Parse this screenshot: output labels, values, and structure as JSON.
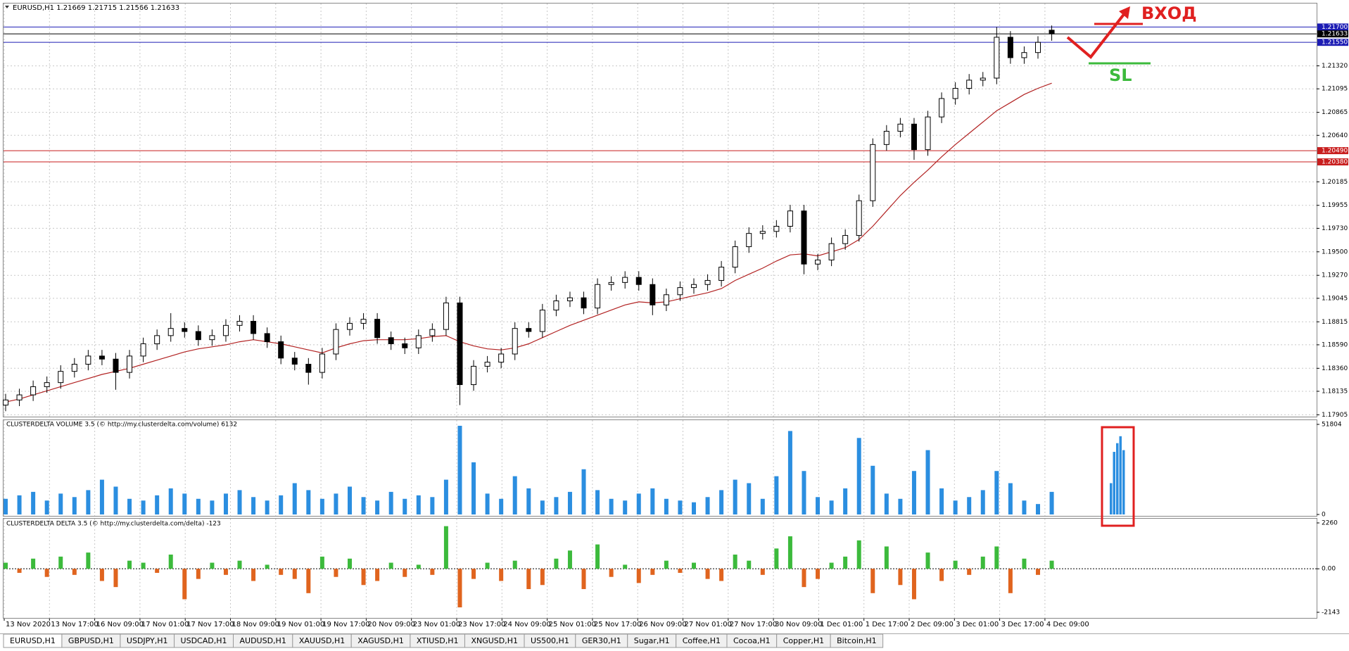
{
  "chart_data": [
    {
      "type": "candlestick",
      "title": "EURUSD,H1  1.21669 1.21715 1.21566 1.21633",
      "open": [
        1.18,
        1.1805,
        1.181,
        1.1818,
        1.1822,
        1.1833,
        1.184,
        1.1848,
        1.1845,
        1.1832,
        1.1848,
        1.186,
        1.1868,
        1.1875,
        1.1872,
        1.1864,
        1.1868,
        1.1878,
        1.1882,
        1.187,
        1.1862,
        1.1846,
        1.184,
        1.1832,
        1.185,
        1.1874,
        1.188,
        1.1884,
        1.1866,
        1.186,
        1.1856,
        1.1868,
        1.1874,
        1.19,
        1.182,
        1.1838,
        1.1842,
        1.185,
        1.1875,
        1.1872,
        1.1893,
        1.1902,
        1.1905,
        1.1895,
        1.1918,
        1.192,
        1.1925,
        1.1918,
        1.1898,
        1.1908,
        1.1915,
        1.1918,
        1.1922,
        1.1935,
        1.1955,
        1.1968,
        1.197,
        1.1975,
        1.199,
        1.1938,
        1.1942,
        1.1958,
        1.1966,
        1.2,
        1.2055,
        1.2068,
        1.2075,
        1.205,
        1.2082,
        1.21,
        1.211,
        1.2118,
        1.212,
        1.216,
        1.214,
        1.2145,
        1.21669
      ],
      "high": [
        1.1811,
        1.1816,
        1.1824,
        1.1828,
        1.1839,
        1.1846,
        1.1854,
        1.1854,
        1.1851,
        1.1854,
        1.1866,
        1.1874,
        1.189,
        1.1881,
        1.1878,
        1.1874,
        1.1884,
        1.1888,
        1.1888,
        1.1876,
        1.1868,
        1.1852,
        1.1846,
        1.1856,
        1.188,
        1.1886,
        1.189,
        1.189,
        1.1872,
        1.1866,
        1.1874,
        1.188,
        1.1906,
        1.1906,
        1.1844,
        1.1848,
        1.1856,
        1.1881,
        1.1881,
        1.1899,
        1.1908,
        1.1911,
        1.1911,
        1.1924,
        1.1926,
        1.1931,
        1.1931,
        1.1924,
        1.1914,
        1.1921,
        1.1924,
        1.1928,
        1.1941,
        1.1961,
        1.1974,
        1.1976,
        1.1981,
        1.1996,
        1.1996,
        1.1948,
        1.1964,
        1.1972,
        1.2006,
        1.2061,
        1.2074,
        1.2081,
        1.2081,
        1.2088,
        1.2106,
        1.2116,
        1.2124,
        1.2126,
        1.217,
        1.2166,
        1.2151,
        1.2161,
        1.21715
      ],
      "low": [
        1.1794,
        1.1799,
        1.1804,
        1.1812,
        1.1816,
        1.1827,
        1.1834,
        1.1839,
        1.1815,
        1.1826,
        1.1842,
        1.1854,
        1.1862,
        1.1866,
        1.1858,
        1.1858,
        1.1862,
        1.1872,
        1.1864,
        1.1856,
        1.184,
        1.1834,
        1.182,
        1.1826,
        1.1844,
        1.1868,
        1.1874,
        1.186,
        1.1854,
        1.185,
        1.185,
        1.1862,
        1.1868,
        1.18,
        1.1814,
        1.1832,
        1.1836,
        1.1844,
        1.1866,
        1.1866,
        1.1887,
        1.1896,
        1.1889,
        1.1889,
        1.1912,
        1.1914,
        1.1912,
        1.1888,
        1.1892,
        1.1902,
        1.1909,
        1.1912,
        1.1916,
        1.1929,
        1.1949,
        1.1962,
        1.1964,
        1.1969,
        1.1928,
        1.1932,
        1.1936,
        1.1952,
        1.196,
        1.1994,
        1.2049,
        1.2062,
        1.204,
        1.2044,
        1.2076,
        1.2094,
        1.2104,
        1.2112,
        1.2114,
        1.2134,
        1.2134,
        1.2139,
        1.21566
      ],
      "close": [
        1.1805,
        1.181,
        1.1818,
        1.1822,
        1.1833,
        1.184,
        1.1848,
        1.1845,
        1.1832,
        1.1848,
        1.186,
        1.1868,
        1.1875,
        1.1872,
        1.1864,
        1.1868,
        1.1878,
        1.1882,
        1.187,
        1.1862,
        1.1846,
        1.184,
        1.1832,
        1.185,
        1.1874,
        1.188,
        1.1884,
        1.1866,
        1.186,
        1.1856,
        1.1868,
        1.1874,
        1.19,
        1.182,
        1.1838,
        1.1842,
        1.185,
        1.1875,
        1.1872,
        1.1893,
        1.1902,
        1.1905,
        1.1895,
        1.1918,
        1.192,
        1.1925,
        1.1918,
        1.1898,
        1.1908,
        1.1915,
        1.1918,
        1.1922,
        1.1935,
        1.1955,
        1.1968,
        1.197,
        1.1975,
        1.199,
        1.1938,
        1.1942,
        1.1958,
        1.1966,
        1.2,
        1.2055,
        1.2068,
        1.2075,
        1.205,
        1.2082,
        1.21,
        1.211,
        1.2118,
        1.212,
        1.216,
        1.214,
        1.2145,
        1.2155,
        1.21633
      ],
      "ma": {
        "color": "#b22222",
        "values": [
          1.1803,
          1.1806,
          1.181,
          1.1814,
          1.1818,
          1.1822,
          1.1826,
          1.183,
          1.1833,
          1.1836,
          1.184,
          1.1844,
          1.1848,
          1.1852,
          1.1855,
          1.1857,
          1.1859,
          1.1862,
          1.1864,
          1.1862,
          1.186,
          1.1857,
          1.1854,
          1.1851,
          1.1856,
          1.186,
          1.1863,
          1.1864,
          1.1864,
          1.1864,
          1.1865,
          1.1867,
          1.1868,
          1.1862,
          1.1858,
          1.1855,
          1.1854,
          1.1856,
          1.186,
          1.1866,
          1.1872,
          1.1878,
          1.1883,
          1.1888,
          1.1893,
          1.1898,
          1.1901,
          1.19,
          1.1901,
          1.1904,
          1.1907,
          1.191,
          1.1914,
          1.1922,
          1.1928,
          1.1934,
          1.1941,
          1.1947,
          1.1948,
          1.1946,
          1.195,
          1.1954,
          1.1962,
          1.1975,
          1.199,
          1.2005,
          1.2018,
          1.203,
          1.2043,
          1.2055,
          1.2066,
          1.2077,
          1.2088,
          1.2096,
          1.2104,
          1.211,
          1.2115
        ]
      },
      "ylim": [
        1.1788,
        1.2193
      ],
      "yticks": [
        {
          "value": 1.2132,
          "label": "1.21320"
        },
        1.21095,
        1.20865,
        {
          "value": 1.2064,
          "label": "1.20640"
        },
        1.20185,
        1.19955,
        {
          "value": 1.1973,
          "label": "1.19730"
        },
        {
          "value": 1.195,
          "label": "1.19500"
        },
        {
          "value": 1.1927,
          "label": "1.19270"
        },
        1.19045,
        1.18815,
        {
          "value": 1.1859,
          "label": "1.18590"
        },
        {
          "value": 1.1836,
          "label": "1.18360"
        },
        1.18135,
        1.17905
      ],
      "hlines": [
        {
          "value": 1.217,
          "label": "1.21700",
          "color": "#1c1cb4"
        },
        {
          "value": 1.21633,
          "label": "1.21633",
          "color": "#000000"
        },
        {
          "value": 1.2155,
          "label": "1.21550",
          "color": "#1c1cb4"
        },
        {
          "value": 1.2049,
          "label": "1.20490",
          "color": "#c81e1e"
        },
        {
          "value": 1.2038,
          "label": "1.20380",
          "color": "#c81e1e"
        }
      ],
      "grid": true
    },
    {
      "type": "bar",
      "title": "CLUSTERDELTA VOLUME 3.5 (© http://my.clusterdelta.com/volume) 6132",
      "values": [
        9000,
        11000,
        13000,
        8000,
        12000,
        10000,
        14000,
        20000,
        16000,
        9000,
        8000,
        11000,
        15000,
        12000,
        9000,
        8000,
        12000,
        14000,
        10000,
        8000,
        11000,
        18000,
        14000,
        9000,
        12000,
        16000,
        10000,
        8000,
        13000,
        9000,
        11000,
        10000,
        20000,
        51000,
        30000,
        12000,
        9000,
        22000,
        15000,
        8000,
        10000,
        13000,
        26000,
        14000,
        9000,
        8000,
        12000,
        15000,
        9000,
        8000,
        7000,
        10000,
        14000,
        20000,
        18000,
        9000,
        22000,
        48000,
        25000,
        10000,
        8000,
        15000,
        44000,
        28000,
        12000,
        9000,
        25000,
        37000,
        15000,
        8000,
        10000,
        14000,
        25000,
        18000,
        8000,
        6000,
        13000
      ],
      "color": "#2b8ee0",
      "highlight": {
        "values": [
          18000,
          36000,
          41000,
          45000,
          37000
        ],
        "box_color": "#e02020"
      },
      "ylim": [
        0,
        51804
      ],
      "yticks": [
        51804,
        0
      ]
    },
    {
      "type": "bar",
      "title": "CLUSTERDELTA DELTA 3.5 (© http://my.clusterdelta.com/delta) -123",
      "values": [
        300,
        -200,
        500,
        -400,
        600,
        -300,
        800,
        -600,
        -900,
        400,
        300,
        -200,
        700,
        -1500,
        -500,
        300,
        -300,
        400,
        -600,
        200,
        -300,
        -500,
        -1200,
        600,
        -400,
        500,
        -800,
        -600,
        300,
        -400,
        200,
        -300,
        2100,
        -1900,
        -500,
        300,
        -600,
        400,
        -1000,
        -800,
        500,
        900,
        -1000,
        1200,
        -400,
        200,
        -700,
        -300,
        400,
        -200,
        300,
        -500,
        -600,
        700,
        400,
        -300,
        1000,
        1600,
        -900,
        -500,
        300,
        600,
        1400,
        -1200,
        1100,
        -800,
        -1500,
        800,
        -600,
        400,
        -300,
        600,
        1100,
        -1200,
        500,
        -300,
        400
      ],
      "color_positive": "#3cba3c",
      "color_negative": "#e0641e",
      "ylim": [
        -2143,
        2260
      ],
      "yticks": [
        2260,
        {
          "value": 0,
          "label": "0.00"
        },
        -2143
      ]
    }
  ],
  "time_axis": {
    "labels": [
      "13 Nov 2020",
      "13 Nov 17:00",
      "16 Nov 09:00",
      "17 Nov 01:00",
      "17 Nov 17:00",
      "18 Nov 09:00",
      "19 Nov 01:00",
      "19 Nov 17:00",
      "20 Nov 09:00",
      "23 Nov 01:00",
      "23 Nov 17:00",
      "24 Nov 09:00",
      "25 Nov 01:00",
      "25 Nov 17:00",
      "26 Nov 09:00",
      "27 Nov 01:00",
      "27 Nov 17:00",
      "30 Nov 09:00",
      "1 Dec 01:00",
      "1 Dec 17:00",
      "2 Dec 09:00",
      "3 Dec 01:00",
      "3 Dec 17:00",
      "4 Dec 09:00"
    ]
  },
  "annotations": {
    "entry": "ВХОД",
    "stop": "SL"
  },
  "tabs": {
    "active": 0,
    "items": [
      "EURUSD,H1",
      "GBPUSD,H1",
      "USDJPY,H1",
      "USDCAD,H1",
      "AUDUSD,H1",
      "XAUUSD,H1",
      "XAGUSD,H1",
      "XTIUSD,H1",
      "XNGUSD,H1",
      "US500,H1",
      "GER30,H1",
      "Sugar,H1",
      "Coffee,H1",
      "Cocoa,H1",
      "Copper,H1",
      "Bitcoin,H1"
    ]
  }
}
